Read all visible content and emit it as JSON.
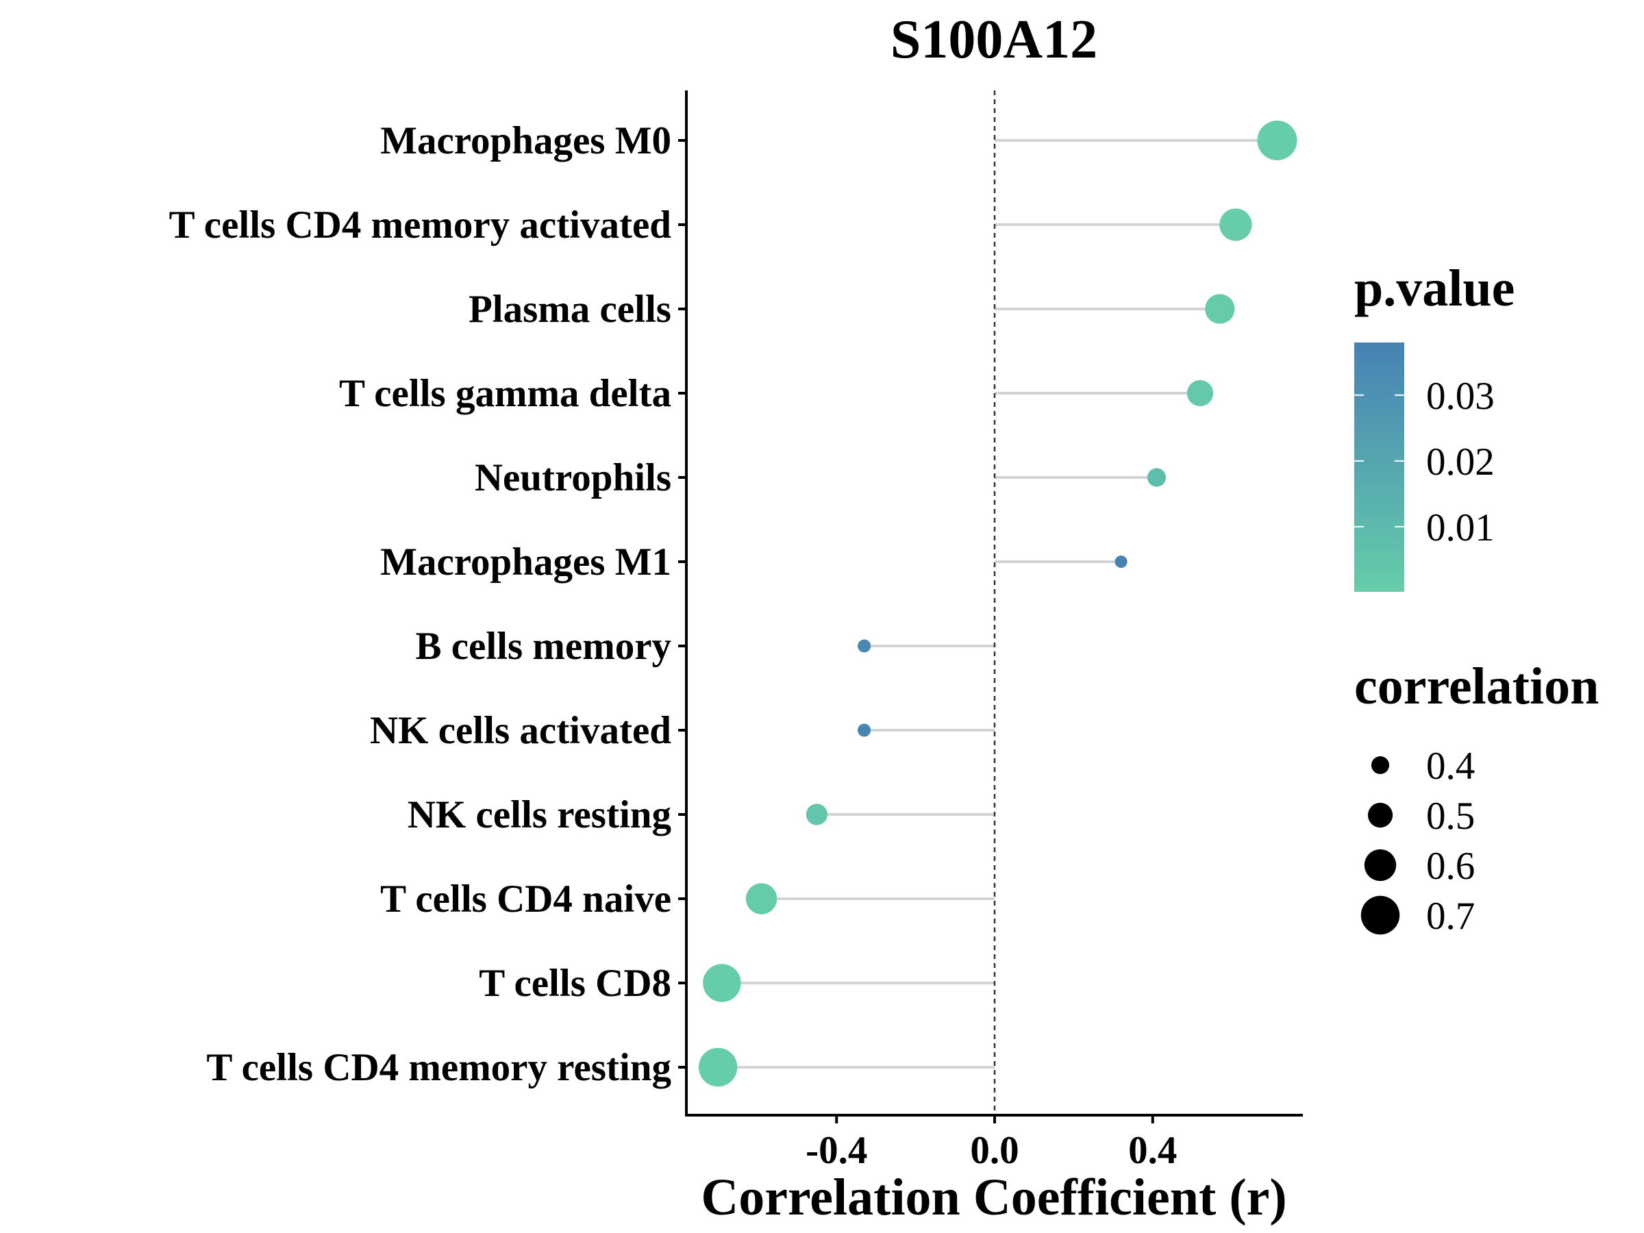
{
  "chart_data": {
    "type": "scatter",
    "subtype": "lollipop",
    "title": "S100A12",
    "xlabel": "Correlation Coefficient (r)",
    "ylabel": "",
    "xlim": [
      -0.78,
      0.78
    ],
    "xticks": [
      -0.4,
      0.0,
      0.4
    ],
    "xtick_labels": [
      "-0.4",
      "0.0",
      "0.4"
    ],
    "reference_line": {
      "x": 0,
      "style": "dashed"
    },
    "grid": false,
    "categories": [
      "Macrophages M0",
      "T cells CD4 memory activated",
      "Plasma cells",
      "T cells gamma delta",
      "Neutrophils",
      "Macrophages M1",
      "B cells memory",
      "NK cells activated",
      "NK cells resting",
      "T cells CD4 naive",
      "T cells CD8",
      "T cells CD4 memory resting"
    ],
    "points": [
      {
        "cell": "Macrophages M0",
        "r": 0.715,
        "p": 0.0001
      },
      {
        "cell": "T cells CD4 memory activated",
        "r": 0.61,
        "p": 0.0005
      },
      {
        "cell": "Plasma cells",
        "r": 0.57,
        "p": 0.001
      },
      {
        "cell": "T cells gamma delta",
        "r": 0.52,
        "p": 0.002
      },
      {
        "cell": "Neutrophils",
        "r": 0.41,
        "p": 0.008
      },
      {
        "cell": "Macrophages M1",
        "r": 0.32,
        "p": 0.038
      },
      {
        "cell": "B cells memory",
        "r": -0.33,
        "p": 0.035
      },
      {
        "cell": "NK cells activated",
        "r": -0.33,
        "p": 0.037
      },
      {
        "cell": "NK cells resting",
        "r": -0.45,
        "p": 0.004
      },
      {
        "cell": "T cells CD4 naive",
        "r": -0.59,
        "p": 0.0008
      },
      {
        "cell": "T cells CD8",
        "r": -0.69,
        "p": 0.0002
      },
      {
        "cell": "T cells CD4 memory resting",
        "r": -0.7,
        "p": 0.0001
      }
    ],
    "color_legend": {
      "title": "p.value",
      "low_color": "#66CDAA",
      "high_color": "#4682B4",
      "range": [
        0.0001,
        0.038
      ],
      "ticks": [
        0.01,
        0.02,
        0.03
      ],
      "tick_labels": [
        "0.01",
        "0.02",
        "0.03"
      ]
    },
    "size_legend": {
      "title": "correlation",
      "values": [
        0.4,
        0.5,
        0.6,
        0.7
      ],
      "labels": [
        "0.4",
        "0.5",
        "0.6",
        "0.7"
      ],
      "color": "#000000"
    },
    "colors": {
      "stem": "#d3d3d3",
      "axis": "#000000",
      "reference_line": "#333333"
    }
  }
}
